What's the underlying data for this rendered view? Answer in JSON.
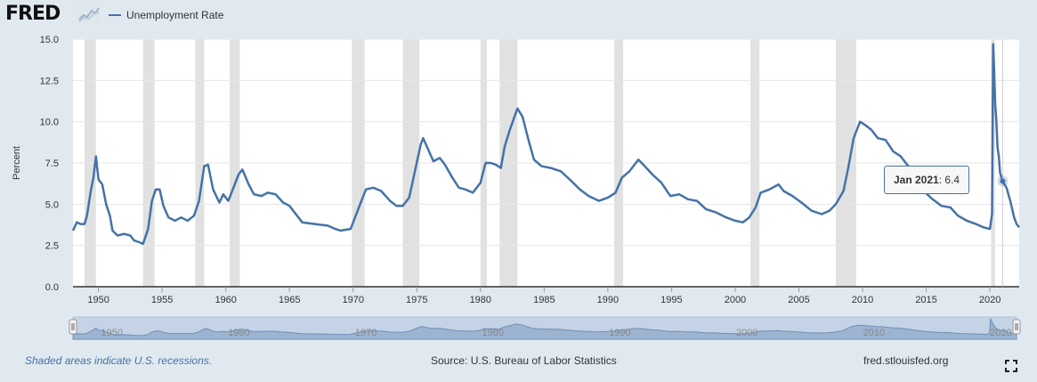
{
  "header": {
    "logo_text": "FRED",
    "legend_label": "Unemployment Rate",
    "series_color": "#4572a7"
  },
  "footer": {
    "note": "Shaded areas indicate U.S. recessions.",
    "source": "Source: U.S. Bureau of Labor Statistics",
    "site": "fred.stlouisfed.org"
  },
  "tooltip": {
    "date": "Jan 2021",
    "value_text": "6.4",
    "x": 2021.0,
    "y": 6.4
  },
  "chart_data": {
    "type": "line",
    "title": "Unemployment Rate",
    "ylabel": "Percent",
    "xlabel": "",
    "xlim": [
      1948.0,
      2022.3
    ],
    "ylim": [
      0,
      15
    ],
    "yticks": [
      0.0,
      2.5,
      5.0,
      7.5,
      10.0,
      12.5,
      15.0
    ],
    "ytick_labels": [
      "0.0",
      "2.5",
      "5.0",
      "7.5",
      "10.0",
      "12.5",
      "15.0"
    ],
    "xticks": [
      1950,
      1955,
      1960,
      1965,
      1970,
      1975,
      1980,
      1985,
      1990,
      1995,
      2000,
      2005,
      2010,
      2015,
      2020
    ],
    "xtick_labels": [
      "1950",
      "1955",
      "1960",
      "1965",
      "1970",
      "1975",
      "1980",
      "1985",
      "1990",
      "1995",
      "2000",
      "2005",
      "2010",
      "2015",
      "2020"
    ],
    "navigator_labels": [
      "1950",
      "1960",
      "1970",
      "1980",
      "1990",
      "2000",
      "2010",
      "2020"
    ],
    "recessions": [
      [
        1948.9,
        1949.8
      ],
      [
        1953.5,
        1954.4
      ],
      [
        1957.6,
        1958.3
      ],
      [
        1960.3,
        1961.1
      ],
      [
        1969.9,
        1970.9
      ],
      [
        1973.9,
        1975.2
      ],
      [
        1980.0,
        1980.5
      ],
      [
        1981.5,
        1982.9
      ],
      [
        1990.5,
        1991.2
      ],
      [
        2001.2,
        2001.9
      ],
      [
        2007.9,
        2009.5
      ],
      [
        2020.1,
        2020.4
      ]
    ],
    "series": [
      {
        "name": "Unemployment Rate",
        "color": "#4572a7",
        "points": [
          [
            1948.0,
            3.4
          ],
          [
            1948.3,
            3.9
          ],
          [
            1948.6,
            3.8
          ],
          [
            1948.9,
            3.8
          ],
          [
            1949.1,
            4.3
          ],
          [
            1949.4,
            5.8
          ],
          [
            1949.6,
            6.6
          ],
          [
            1949.8,
            7.9
          ],
          [
            1950.0,
            6.5
          ],
          [
            1950.3,
            6.2
          ],
          [
            1950.6,
            5.0
          ],
          [
            1950.9,
            4.3
          ],
          [
            1951.1,
            3.4
          ],
          [
            1951.5,
            3.1
          ],
          [
            1952.0,
            3.2
          ],
          [
            1952.5,
            3.1
          ],
          [
            1952.8,
            2.8
          ],
          [
            1953.2,
            2.7
          ],
          [
            1953.5,
            2.6
          ],
          [
            1953.9,
            3.5
          ],
          [
            1954.2,
            5.2
          ],
          [
            1954.5,
            5.9
          ],
          [
            1954.8,
            5.9
          ],
          [
            1955.1,
            4.9
          ],
          [
            1955.5,
            4.2
          ],
          [
            1956.0,
            4.0
          ],
          [
            1956.5,
            4.2
          ],
          [
            1957.0,
            4.0
          ],
          [
            1957.5,
            4.3
          ],
          [
            1957.9,
            5.2
          ],
          [
            1958.3,
            7.3
          ],
          [
            1958.6,
            7.4
          ],
          [
            1959.0,
            5.9
          ],
          [
            1959.5,
            5.1
          ],
          [
            1959.8,
            5.6
          ],
          [
            1960.2,
            5.2
          ],
          [
            1960.6,
            6.0
          ],
          [
            1961.0,
            6.8
          ],
          [
            1961.3,
            7.1
          ],
          [
            1961.8,
            6.2
          ],
          [
            1962.2,
            5.6
          ],
          [
            1962.8,
            5.5
          ],
          [
            1963.3,
            5.7
          ],
          [
            1963.9,
            5.6
          ],
          [
            1964.5,
            5.1
          ],
          [
            1965.0,
            4.9
          ],
          [
            1965.5,
            4.4
          ],
          [
            1966.0,
            3.9
          ],
          [
            1967.0,
            3.8
          ],
          [
            1968.0,
            3.7
          ],
          [
            1968.6,
            3.5
          ],
          [
            1969.0,
            3.4
          ],
          [
            1969.8,
            3.5
          ],
          [
            1970.2,
            4.3
          ],
          [
            1970.6,
            5.1
          ],
          [
            1971.0,
            5.9
          ],
          [
            1971.6,
            6.0
          ],
          [
            1972.2,
            5.8
          ],
          [
            1972.9,
            5.2
          ],
          [
            1973.4,
            4.9
          ],
          [
            1973.9,
            4.9
          ],
          [
            1974.4,
            5.4
          ],
          [
            1974.9,
            7.2
          ],
          [
            1975.3,
            8.6
          ],
          [
            1975.5,
            9.0
          ],
          [
            1975.9,
            8.3
          ],
          [
            1976.3,
            7.6
          ],
          [
            1976.8,
            7.8
          ],
          [
            1977.2,
            7.4
          ],
          [
            1977.8,
            6.6
          ],
          [
            1978.3,
            6.0
          ],
          [
            1978.8,
            5.9
          ],
          [
            1979.4,
            5.7
          ],
          [
            1980.0,
            6.3
          ],
          [
            1980.4,
            7.5
          ],
          [
            1980.8,
            7.5
          ],
          [
            1981.2,
            7.4
          ],
          [
            1981.6,
            7.2
          ],
          [
            1981.9,
            8.5
          ],
          [
            1982.3,
            9.5
          ],
          [
            1982.9,
            10.8
          ],
          [
            1983.3,
            10.3
          ],
          [
            1983.8,
            8.8
          ],
          [
            1984.2,
            7.7
          ],
          [
            1984.8,
            7.3
          ],
          [
            1985.5,
            7.2
          ],
          [
            1986.3,
            7.0
          ],
          [
            1987.0,
            6.5
          ],
          [
            1987.8,
            5.9
          ],
          [
            1988.5,
            5.5
          ],
          [
            1989.3,
            5.2
          ],
          [
            1990.0,
            5.4
          ],
          [
            1990.6,
            5.7
          ],
          [
            1991.1,
            6.6
          ],
          [
            1991.7,
            7.0
          ],
          [
            1992.4,
            7.7
          ],
          [
            1992.9,
            7.3
          ],
          [
            1993.5,
            6.8
          ],
          [
            1994.2,
            6.3
          ],
          [
            1994.9,
            5.5
          ],
          [
            1995.6,
            5.6
          ],
          [
            1996.3,
            5.3
          ],
          [
            1997.0,
            5.2
          ],
          [
            1997.7,
            4.7
          ],
          [
            1998.5,
            4.5
          ],
          [
            1999.3,
            4.2
          ],
          [
            2000.0,
            4.0
          ],
          [
            2000.6,
            3.9
          ],
          [
            2001.1,
            4.2
          ],
          [
            2001.6,
            4.8
          ],
          [
            2002.0,
            5.7
          ],
          [
            2002.7,
            5.9
          ],
          [
            2003.4,
            6.2
          ],
          [
            2003.8,
            5.8
          ],
          [
            2004.5,
            5.5
          ],
          [
            2005.2,
            5.1
          ],
          [
            2006.0,
            4.6
          ],
          [
            2006.8,
            4.4
          ],
          [
            2007.4,
            4.6
          ],
          [
            2007.9,
            5.0
          ],
          [
            2008.5,
            5.8
          ],
          [
            2008.9,
            7.3
          ],
          [
            2009.3,
            9.0
          ],
          [
            2009.8,
            10.0
          ],
          [
            2010.2,
            9.8
          ],
          [
            2010.7,
            9.5
          ],
          [
            2011.2,
            9.0
          ],
          [
            2011.8,
            8.9
          ],
          [
            2012.4,
            8.2
          ],
          [
            2013.0,
            7.9
          ],
          [
            2013.6,
            7.3
          ],
          [
            2014.2,
            6.6
          ],
          [
            2014.8,
            5.8
          ],
          [
            2015.5,
            5.3
          ],
          [
            2016.2,
            4.9
          ],
          [
            2016.9,
            4.8
          ],
          [
            2017.5,
            4.3
          ],
          [
            2018.2,
            4.0
          ],
          [
            2018.9,
            3.8
          ],
          [
            2019.5,
            3.6
          ],
          [
            2020.0,
            3.5
          ],
          [
            2020.17,
            4.4
          ],
          [
            2020.25,
            14.7
          ],
          [
            2020.33,
            13.2
          ],
          [
            2020.42,
            11.0
          ],
          [
            2020.5,
            10.2
          ],
          [
            2020.6,
            8.4
          ],
          [
            2020.7,
            7.9
          ],
          [
            2020.8,
            6.9
          ],
          [
            2021.0,
            6.4
          ],
          [
            2021.3,
            6.0
          ],
          [
            2021.6,
            5.2
          ],
          [
            2021.9,
            4.2
          ],
          [
            2022.1,
            3.8
          ],
          [
            2022.3,
            3.6
          ]
        ]
      }
    ]
  }
}
